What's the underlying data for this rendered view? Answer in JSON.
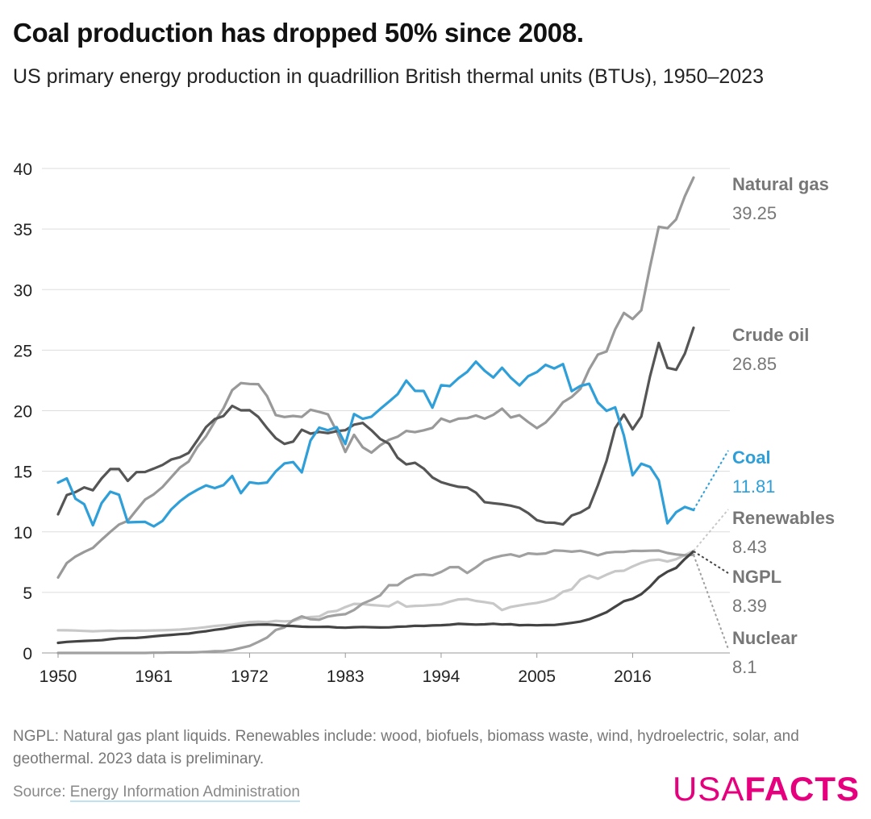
{
  "title": "Coal production has dropped 50% since 2008.",
  "subtitle": "US primary energy production in quadrillion British thermal units (BTUs), 1950–2023",
  "note": "NGPL: Natural gas plant liquids. Renewables include: wood, biofuels, biomass waste, wind, hydroelectric, solar, and geothermal. 2023 data is preliminary.",
  "source": {
    "label": "Source: ",
    "link_text": "Energy Information Administration"
  },
  "logo": {
    "usa": "USA",
    "facts": "FACTS"
  },
  "colors": {
    "accent": "#e6007e",
    "coal": "#2e9fd8",
    "natural_gas": "#999999",
    "crude_oil": "#555555",
    "renewables": "#c8c8c8",
    "ngpl": "#444444",
    "nuclear": "#a0a0a0",
    "grid": "#dddddd"
  },
  "chart_data": {
    "type": "line",
    "x_start": 1950,
    "x_end": 2023,
    "xticks": [
      1950,
      1961,
      1972,
      1983,
      1994,
      2005,
      2016
    ],
    "yticks": [
      0,
      5,
      10,
      15,
      20,
      25,
      30,
      35,
      40
    ],
    "ylim": [
      0,
      40
    ],
    "grid": true,
    "legend": "end-labels-right",
    "series": [
      {
        "name": "Natural gas",
        "end_label": "39.25",
        "values": [
          6.23,
          7.42,
          7.96,
          8.34,
          8.67,
          9.35,
          10.0,
          10.6,
          10.9,
          11.8,
          12.66,
          13.1,
          13.7,
          14.5,
          15.3,
          15.8,
          17.0,
          17.9,
          19.1,
          20.2,
          21.7,
          22.28,
          22.21,
          22.19,
          21.21,
          19.64,
          19.48,
          19.57,
          19.49,
          20.08,
          19.91,
          19.7,
          18.32,
          16.59,
          18.01,
          16.98,
          16.54,
          17.14,
          17.6,
          17.85,
          18.33,
          18.23,
          18.38,
          18.58,
          19.35,
          19.08,
          19.34,
          19.39,
          19.61,
          19.34,
          19.66,
          20.17,
          19.44,
          19.63,
          19.07,
          18.56,
          19.02,
          19.79,
          20.7,
          21.14,
          21.81,
          23.41,
          24.63,
          24.89,
          26.72,
          28.07,
          27.57,
          28.29,
          31.88,
          35.19,
          35.07,
          35.8,
          37.71,
          39.25
        ]
      },
      {
        "name": "Crude oil",
        "end_label": "26.85",
        "values": [
          11.45,
          13.04,
          13.28,
          13.67,
          13.43,
          14.41,
          15.18,
          15.18,
          14.2,
          14.93,
          14.94,
          15.22,
          15.52,
          15.97,
          16.16,
          16.52,
          17.56,
          18.65,
          19.31,
          19.56,
          20.4,
          20.03,
          20.04,
          19.49,
          18.57,
          17.73,
          17.26,
          17.45,
          18.43,
          18.1,
          18.25,
          18.15,
          18.31,
          18.39,
          18.85,
          18.99,
          18.38,
          17.67,
          17.28,
          16.12,
          15.57,
          15.7,
          15.22,
          14.49,
          14.1,
          13.89,
          13.72,
          13.66,
          13.24,
          12.45,
          12.36,
          12.28,
          12.16,
          11.98,
          11.55,
          10.96,
          10.77,
          10.75,
          10.61,
          11.35,
          11.6,
          12.02,
          13.83,
          15.86,
          18.56,
          19.68,
          18.46,
          19.53,
          22.84,
          25.6,
          23.54,
          23.38,
          24.72,
          26.85
        ]
      },
      {
        "name": "Coal",
        "end_label": "11.81",
        "values": [
          14.06,
          14.41,
          12.73,
          12.28,
          10.54,
          12.37,
          13.31,
          13.06,
          10.78,
          10.81,
          10.82,
          10.45,
          10.9,
          11.85,
          12.52,
          13.06,
          13.47,
          13.83,
          13.61,
          13.86,
          14.61,
          13.19,
          14.09,
          13.99,
          14.07,
          14.99,
          15.65,
          15.76,
          14.91,
          17.54,
          18.6,
          18.38,
          18.64,
          17.25,
          19.72,
          19.33,
          19.51,
          20.14,
          20.74,
          21.36,
          22.49,
          21.64,
          21.63,
          20.25,
          22.11,
          22.03,
          22.68,
          23.21,
          24.05,
          23.3,
          22.74,
          23.55,
          22.73,
          22.09,
          22.85,
          23.19,
          23.79,
          23.49,
          23.85,
          21.62,
          22.04,
          22.22,
          20.68,
          19.99,
          20.28,
          17.95,
          14.67,
          15.63,
          15.36,
          14.26,
          10.7,
          11.62,
          12.05,
          11.81
        ]
      },
      {
        "name": "Renewables",
        "end_label": "8.43",
        "values": [
          1.88,
          1.87,
          1.85,
          1.82,
          1.79,
          1.82,
          1.84,
          1.82,
          1.83,
          1.84,
          1.84,
          1.86,
          1.87,
          1.9,
          1.93,
          1.99,
          2.05,
          2.13,
          2.22,
          2.29,
          2.33,
          2.45,
          2.55,
          2.58,
          2.54,
          2.65,
          2.61,
          2.64,
          2.87,
          2.96,
          3.01,
          3.38,
          3.47,
          3.79,
          4.05,
          4.03,
          3.96,
          3.91,
          3.85,
          4.23,
          3.83,
          3.89,
          3.91,
          3.96,
          4.01,
          4.24,
          4.42,
          4.45,
          4.29,
          4.2,
          4.08,
          3.54,
          3.8,
          3.92,
          4.04,
          4.13,
          4.29,
          4.54,
          5.05,
          5.25,
          6.06,
          6.38,
          6.13,
          6.46,
          6.75,
          6.79,
          7.14,
          7.44,
          7.65,
          7.71,
          7.55,
          7.74,
          8.07,
          8.43
        ]
      },
      {
        "name": "NGPL",
        "end_label": "8.39",
        "values": [
          0.83,
          0.91,
          0.95,
          0.99,
          1.02,
          1.05,
          1.14,
          1.21,
          1.23,
          1.24,
          1.3,
          1.37,
          1.44,
          1.49,
          1.55,
          1.6,
          1.71,
          1.79,
          1.91,
          2.0,
          2.13,
          2.23,
          2.31,
          2.34,
          2.35,
          2.31,
          2.24,
          2.22,
          2.17,
          2.15,
          2.15,
          2.16,
          2.1,
          2.08,
          2.12,
          2.14,
          2.12,
          2.1,
          2.11,
          2.16,
          2.18,
          2.24,
          2.23,
          2.27,
          2.29,
          2.33,
          2.4,
          2.37,
          2.34,
          2.36,
          2.41,
          2.35,
          2.37,
          2.29,
          2.31,
          2.28,
          2.3,
          2.31,
          2.39,
          2.48,
          2.59,
          2.78,
          3.06,
          3.36,
          3.82,
          4.27,
          4.47,
          4.85,
          5.48,
          6.25,
          6.71,
          7.02,
          7.76,
          8.39
        ]
      },
      {
        "name": "Nuclear",
        "end_label": "8.1",
        "values": [
          0,
          0,
          0,
          0,
          0,
          0,
          0,
          0,
          0,
          0,
          0,
          0.02,
          0.02,
          0.04,
          0.04,
          0.04,
          0.06,
          0.09,
          0.14,
          0.15,
          0.24,
          0.41,
          0.58,
          0.91,
          1.27,
          1.9,
          2.11,
          2.7,
          3.02,
          2.78,
          2.74,
          3.01,
          3.13,
          3.2,
          3.55,
          4.08,
          4.38,
          4.75,
          5.59,
          5.6,
          6.1,
          6.42,
          6.48,
          6.41,
          6.69,
          7.08,
          7.09,
          6.6,
          7.07,
          7.61,
          7.86,
          8.03,
          8.14,
          7.96,
          8.22,
          8.16,
          8.21,
          8.46,
          8.43,
          8.36,
          8.43,
          8.27,
          8.06,
          8.27,
          8.34,
          8.34,
          8.43,
          8.42,
          8.44,
          8.45,
          8.25,
          8.13,
          8.06,
          8.1
        ]
      }
    ]
  }
}
